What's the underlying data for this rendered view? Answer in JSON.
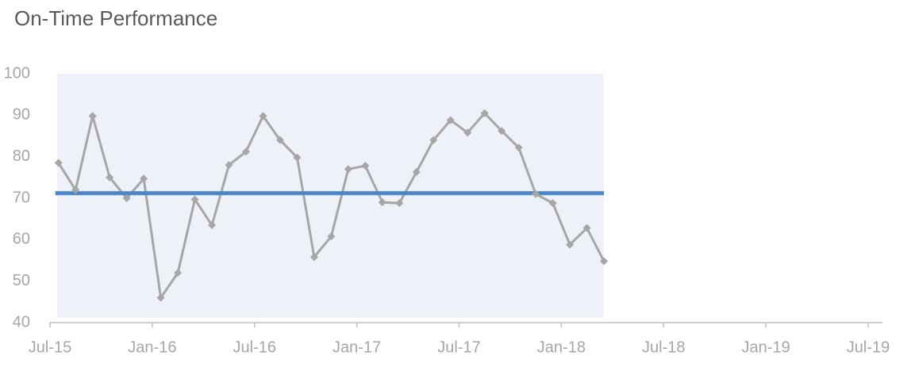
{
  "chart_data": {
    "type": "line",
    "title": "On-Time Performance",
    "x": [
      "2015-07",
      "2015-08",
      "2015-09",
      "2015-10",
      "2015-11",
      "2015-12",
      "2016-01",
      "2016-02",
      "2016-03",
      "2016-04",
      "2016-05",
      "2016-06",
      "2016-07",
      "2016-08",
      "2016-09",
      "2016-10",
      "2016-11",
      "2016-12",
      "2017-01",
      "2017-02",
      "2017-03",
      "2017-04",
      "2017-05",
      "2017-06",
      "2017-07",
      "2017-08",
      "2017-09",
      "2017-10",
      "2017-11",
      "2017-12",
      "2018-01",
      "2018-02",
      "2018-03"
    ],
    "series": [
      {
        "color": "#a6a6a6",
        "values": [
          78.5,
          72,
          89.8,
          75,
          70,
          74.7,
          46,
          52,
          69.7,
          63.5,
          78,
          81.2,
          89.8,
          84,
          79.8,
          55.8,
          60.8,
          77,
          77.8,
          69,
          68.8,
          76.3,
          84,
          88.8,
          85.8,
          90.5,
          86.2,
          82.2,
          71,
          68.8,
          58.8,
          62.8,
          54.8
        ]
      }
    ],
    "reference_line": {
      "value": 71.2,
      "color": "#4a86c8"
    },
    "ylim": [
      40,
      100
    ],
    "yticks": [
      40,
      50,
      60,
      70,
      80,
      90,
      100
    ],
    "xlim": [
      "2015-07",
      "2019-07"
    ],
    "xticks": [
      {
        "value": "2015-07",
        "label": "Jul-15"
      },
      {
        "value": "2016-01",
        "label": "Jan-16"
      },
      {
        "value": "2016-07",
        "label": "Jul-16"
      },
      {
        "value": "2017-01",
        "label": "Jan-17"
      },
      {
        "value": "2017-07",
        "label": "Jul-17"
      },
      {
        "value": "2018-01",
        "label": "Jan-18"
      },
      {
        "value": "2018-07",
        "label": "Jul-18"
      },
      {
        "value": "2019-01",
        "label": "Jan-19"
      },
      {
        "value": "2019-07",
        "label": "Jul-19"
      }
    ],
    "background": "#eef1f8"
  }
}
